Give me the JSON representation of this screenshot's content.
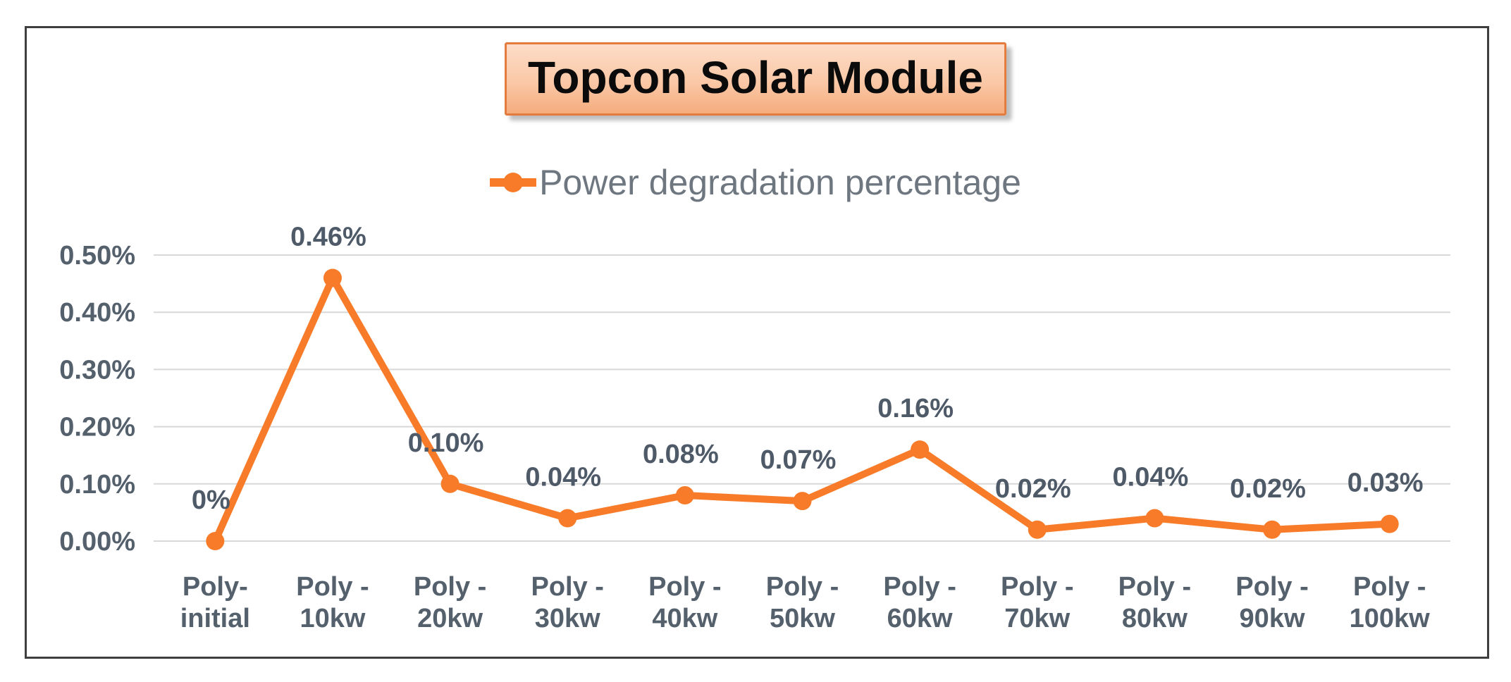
{
  "chart_data": {
    "type": "line",
    "title": "Topcon Solar Module",
    "legend": "Power degradation percentage",
    "legend_position": "top",
    "series_name": "Power degradation percentage",
    "categories": [
      [
        "Poly-",
        "initial"
      ],
      [
        "Poly -",
        "10kw"
      ],
      [
        "Poly -",
        "20kw"
      ],
      [
        "Poly -",
        "30kw"
      ],
      [
        "Poly -",
        "40kw"
      ],
      [
        "Poly -",
        "50kw"
      ],
      [
        "Poly -",
        "60kw"
      ],
      [
        "Poly -",
        "70kw"
      ],
      [
        "Poly -",
        "80kw"
      ],
      [
        "Poly -",
        "90kw"
      ],
      [
        "Poly -",
        "100kw"
      ]
    ],
    "values": [
      0,
      0.46,
      0.1,
      0.04,
      0.08,
      0.07,
      0.16,
      0.02,
      0.04,
      0.02,
      0.03
    ],
    "data_labels": [
      "0%",
      "0.46%",
      "0.10%",
      "0.04%",
      "0.08%",
      "0.07%",
      "0.16%",
      "0.02%",
      "0.04%",
      "0.02%",
      "0.03%"
    ],
    "y_ticks": [
      {
        "label": "0.00%",
        "value": 0.0
      },
      {
        "label": "0.10%",
        "value": 0.1
      },
      {
        "label": "0.20%",
        "value": 0.2
      },
      {
        "label": "0.30%",
        "value": 0.3
      },
      {
        "label": "0.40%",
        "value": 0.4
      },
      {
        "label": "0.50%",
        "value": 0.5
      }
    ],
    "ylim": [
      0,
      0.5
    ],
    "xlabel": "",
    "ylabel": "",
    "grid": true,
    "colors": {
      "line": "#f77b29",
      "marker": "#f77b29",
      "tick_text": "#55606d",
      "data_label_text": "#4e5a68",
      "legend_text": "#6e7780",
      "gridline": "#d8d8d8",
      "title_text": "#0b0b0b",
      "title_border": "#e47b3c",
      "title_fill_top": "#fcdcc8",
      "title_fill_bottom": "#f5ac7e",
      "frame_border": "#3f3f3f"
    }
  }
}
